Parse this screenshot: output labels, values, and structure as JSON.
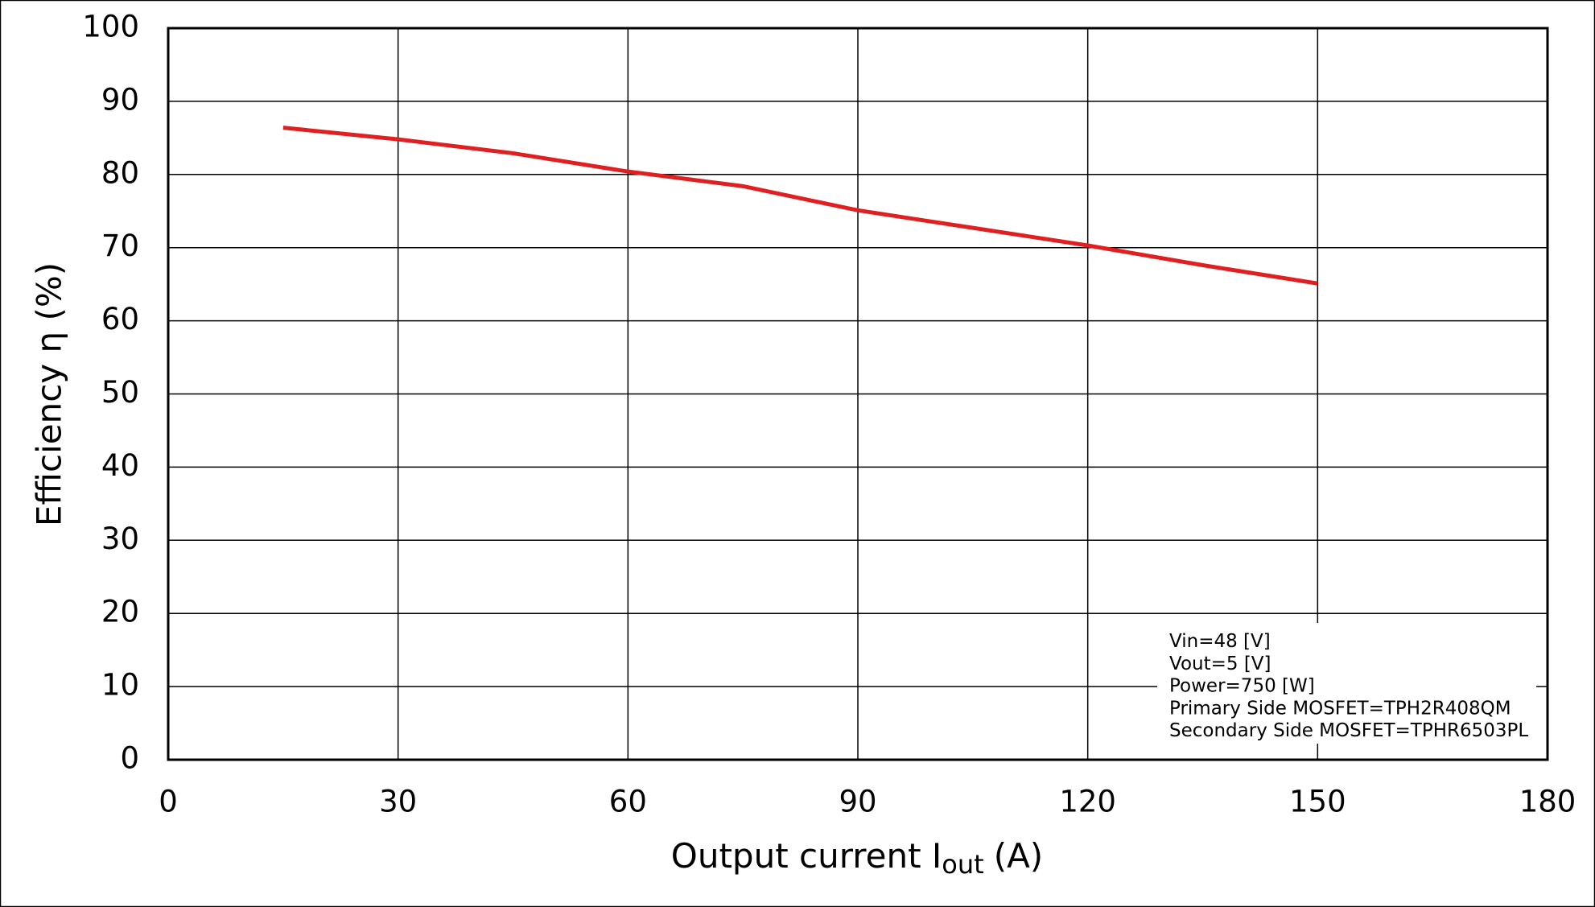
{
  "chart_data": {
    "type": "line",
    "xlabel": {
      "text": "Output current  I",
      "subscript": "out",
      "suffix": "(A)"
    },
    "ylabel": "Efficiency  η (%)",
    "x": [
      15,
      30,
      45,
      60,
      75,
      90,
      105,
      120,
      135,
      150
    ],
    "series": [
      {
        "color": "#e02020",
        "values": [
          86.4,
          84.8,
          82.9,
          80.4,
          78.4,
          75.1,
          72.7,
          70.3,
          67.6,
          65.1
        ]
      }
    ],
    "xlim": [
      0,
      180
    ],
    "xticks": [
      0,
      30,
      60,
      90,
      120,
      150,
      180
    ],
    "ylim": [
      0,
      100
    ],
    "yticks": [
      0,
      10,
      20,
      30,
      40,
      50,
      60,
      70,
      80,
      90,
      100
    ],
    "grid": true,
    "annotation": [
      "Vin=48 [V]",
      "Vout=5 [V]",
      "Power=750 [W]",
      "Primary Side MOSFET=TPH2R408QM",
      "Secondary Side MOSFET=TPHR6503PL"
    ]
  }
}
